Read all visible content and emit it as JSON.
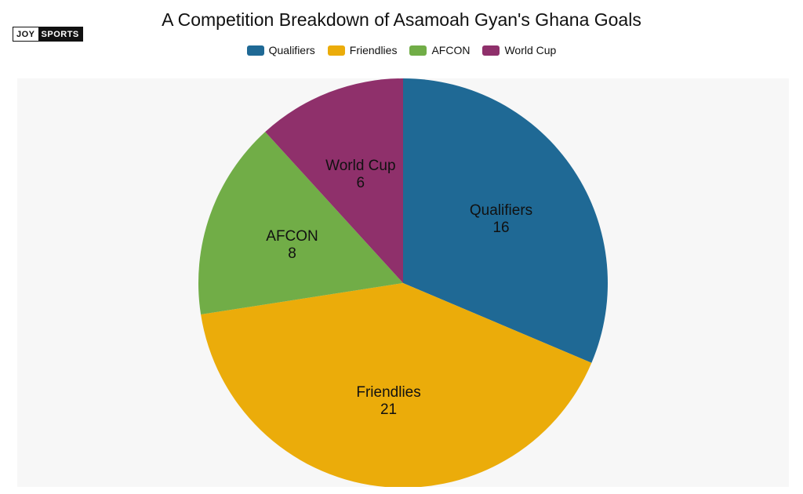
{
  "brand": {
    "logo_left": "JOY",
    "logo_right": "SPORTS"
  },
  "chart_data": {
    "type": "pie",
    "title": "A Competition Breakdown of Asamoah Gyan's Ghana Goals",
    "legend_position": "top",
    "slices": [
      {
        "name": "Qualifiers",
        "value": 16,
        "value_label": "16",
        "color": "#1f6995"
      },
      {
        "name": "Friendlies",
        "value": 21,
        "value_label": "21",
        "color": "#ebac0a"
      },
      {
        "name": "AFCON",
        "value": 8,
        "value_label": "8",
        "color": "#71ad47"
      },
      {
        "name": "World Cup",
        "value": 6,
        "value_label": "6",
        "color": "#8f306b"
      }
    ]
  }
}
